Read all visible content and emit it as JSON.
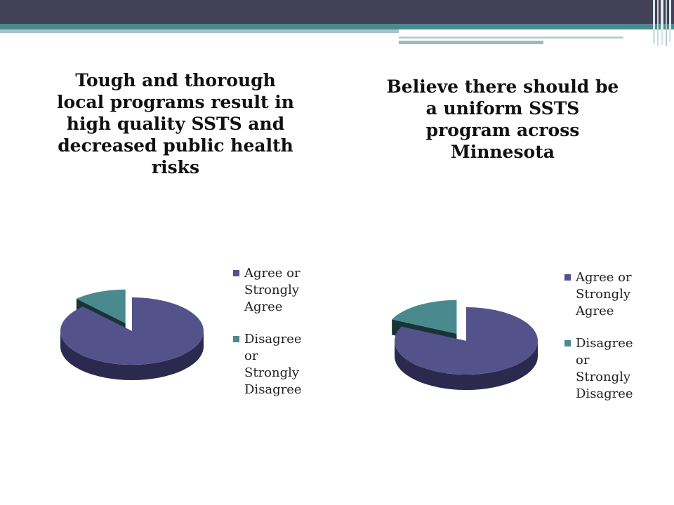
{
  "colors": {
    "agree": "#54528a",
    "agree_side": "#2b2a4e",
    "disagree": "#4a8a8e",
    "disagree_side": "#193436",
    "header_dark": "#424158",
    "header_teal": "#4a8a8e"
  },
  "chart_data": [
    {
      "type": "pie",
      "variant": "3d-exploded",
      "title": "Tough and thorough local programs result in high quality SSTS and decreased public health risks",
      "legend_placement": "right",
      "categories": [
        "Agree or Strongly Agree",
        "Disagree or Strongly Disagree"
      ],
      "values": [
        88,
        12
      ],
      "legend": [
        {
          "lines": [
            "Agree or",
            "Strongly",
            "Agree"
          ]
        },
        {
          "lines": [
            "Disagree",
            "or",
            "Strongly",
            "Disagree"
          ]
        }
      ]
    },
    {
      "type": "pie",
      "variant": "3d-exploded",
      "title": "Believe there should be a uniform SSTS program across Minnesota",
      "legend_placement": "right",
      "categories": [
        "Agree or Strongly Agree",
        "Disagree or Strongly Disagree"
      ],
      "values": [
        82,
        18
      ],
      "legend": [
        {
          "lines": [
            "Agree or",
            "Strongly",
            "Agree"
          ]
        },
        {
          "lines": [
            "Disagree",
            "or",
            "Strongly",
            "Disagree"
          ]
        }
      ]
    }
  ]
}
